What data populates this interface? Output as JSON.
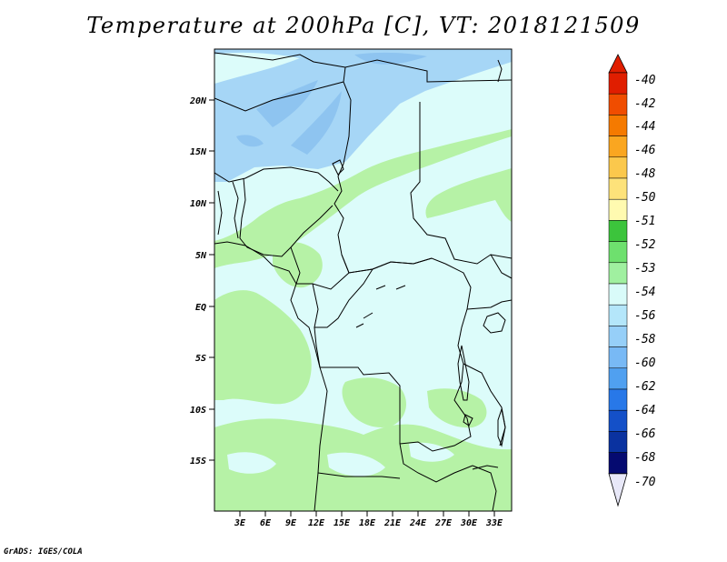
{
  "title": "Temperature at 200hPa [C], VT: 2018121509",
  "credit": "GrADS: IGES/COLA",
  "lat_ticks": [
    "20N",
    "15N",
    "10N",
    "5N",
    "EQ",
    "5S",
    "10S",
    "15S"
  ],
  "lon_ticks": [
    "3E",
    "6E",
    "9E",
    "12E",
    "15E",
    "18E",
    "21E",
    "24E",
    "27E",
    "30E",
    "33E"
  ],
  "colorbar": {
    "labels": [
      "-40",
      "-42",
      "-44",
      "-46",
      "-48",
      "-50",
      "-51",
      "-52",
      "-53",
      "-54",
      "-56",
      "-58",
      "-60",
      "-62",
      "-64",
      "-66",
      "-68",
      "-70"
    ],
    "colors": [
      "#e01e00",
      "#f04d00",
      "#f57a00",
      "#faa620",
      "#fbc84c",
      "#fde27a",
      "#fffab0",
      "#3cc43c",
      "#6ee06e",
      "#a0f0a0",
      "#d9fbf9",
      "#b4e6fa",
      "#96cff8",
      "#78b9f5",
      "#50a0f0",
      "#2878e8",
      "#1450c8",
      "#0a32a0",
      "#050a70"
    ],
    "top_arrow_color": "#e01e00",
    "bottom_arrow_color": "#e8e8f8"
  },
  "map": {
    "background_color": "#dcfcfa",
    "warm_fill": "#b6f2a6",
    "cold_fill": "#a6d6f6",
    "colder_fill": "#8ec4f0"
  }
}
